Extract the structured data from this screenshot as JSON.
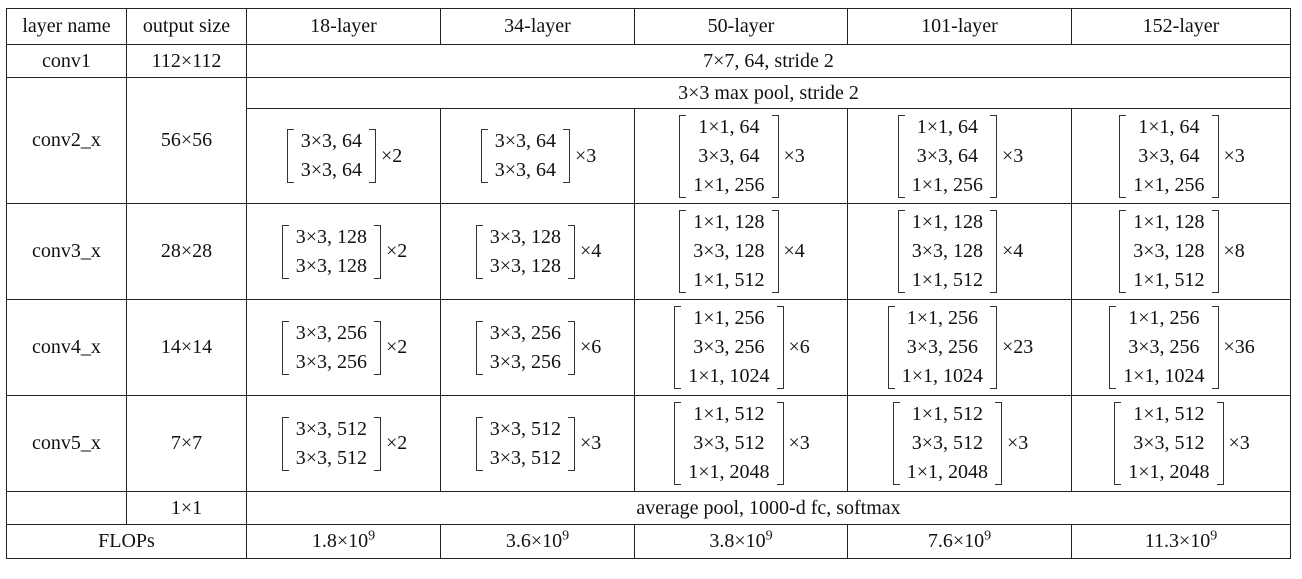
{
  "headers": [
    "layer name",
    "output size",
    "18-layer",
    "34-layer",
    "50-layer",
    "101-layer",
    "152-layer"
  ],
  "conv1": {
    "name": "conv1",
    "size": "112×112",
    "spec": "7×7, 64, stride 2"
  },
  "conv2": {
    "name": "conv2_x",
    "size": "56×56",
    "pool": "3×3 max pool, stride 2",
    "blocks": [
      {
        "lines": [
          "3×3, 64",
          "3×3, 64"
        ],
        "mult": "×2"
      },
      {
        "lines": [
          "3×3, 64",
          "3×3, 64"
        ],
        "mult": "×3"
      },
      {
        "lines": [
          "1×1, 64",
          "3×3, 64",
          "1×1, 256"
        ],
        "mult": "×3"
      },
      {
        "lines": [
          "1×1, 64",
          "3×3, 64",
          "1×1, 256"
        ],
        "mult": "×3"
      },
      {
        "lines": [
          "1×1, 64",
          "3×3, 64",
          "1×1, 256"
        ],
        "mult": "×3"
      }
    ]
  },
  "conv3": {
    "name": "conv3_x",
    "size": "28×28",
    "blocks": [
      {
        "lines": [
          "3×3, 128",
          "3×3, 128"
        ],
        "mult": "×2"
      },
      {
        "lines": [
          "3×3, 128",
          "3×3, 128"
        ],
        "mult": "×4"
      },
      {
        "lines": [
          "1×1, 128",
          "3×3, 128",
          "1×1, 512"
        ],
        "mult": "×4"
      },
      {
        "lines": [
          "1×1, 128",
          "3×3, 128",
          "1×1, 512"
        ],
        "mult": "×4"
      },
      {
        "lines": [
          "1×1, 128",
          "3×3, 128",
          "1×1, 512"
        ],
        "mult": "×8"
      }
    ]
  },
  "conv4": {
    "name": "conv4_x",
    "size": "14×14",
    "blocks": [
      {
        "lines": [
          "3×3, 256",
          "3×3, 256"
        ],
        "mult": "×2"
      },
      {
        "lines": [
          "3×3, 256",
          "3×3, 256"
        ],
        "mult": "×6"
      },
      {
        "lines": [
          "1×1, 256",
          "3×3, 256",
          "1×1, 1024"
        ],
        "mult": "×6"
      },
      {
        "lines": [
          "1×1, 256",
          "3×3, 256",
          "1×1, 1024"
        ],
        "mult": "×23"
      },
      {
        "lines": [
          "1×1, 256",
          "3×3, 256",
          "1×1, 1024"
        ],
        "mult": "×36"
      }
    ]
  },
  "conv5": {
    "name": "conv5_x",
    "size": "7×7",
    "blocks": [
      {
        "lines": [
          "3×3, 512",
          "3×3, 512"
        ],
        "mult": "×2"
      },
      {
        "lines": [
          "3×3, 512",
          "3×3, 512"
        ],
        "mult": "×3"
      },
      {
        "lines": [
          "1×1, 512",
          "3×3, 512",
          "1×1, 2048"
        ],
        "mult": "×3"
      },
      {
        "lines": [
          "1×1, 512",
          "3×3, 512",
          "1×1, 2048"
        ],
        "mult": "×3"
      },
      {
        "lines": [
          "1×1, 512",
          "3×3, 512",
          "1×1, 2048"
        ],
        "mult": "×3"
      }
    ]
  },
  "avgpool": {
    "size": "1×1",
    "spec": "average pool, 1000-d fc, softmax"
  },
  "flops": {
    "label": "FLOPs",
    "values": [
      {
        "base": "1.8×10",
        "exp": "9"
      },
      {
        "base": "3.6×10",
        "exp": "9"
      },
      {
        "base": "3.8×10",
        "exp": "9"
      },
      {
        "base": "7.6×10",
        "exp": "9"
      },
      {
        "base": "11.3×10",
        "exp": "9"
      }
    ]
  }
}
